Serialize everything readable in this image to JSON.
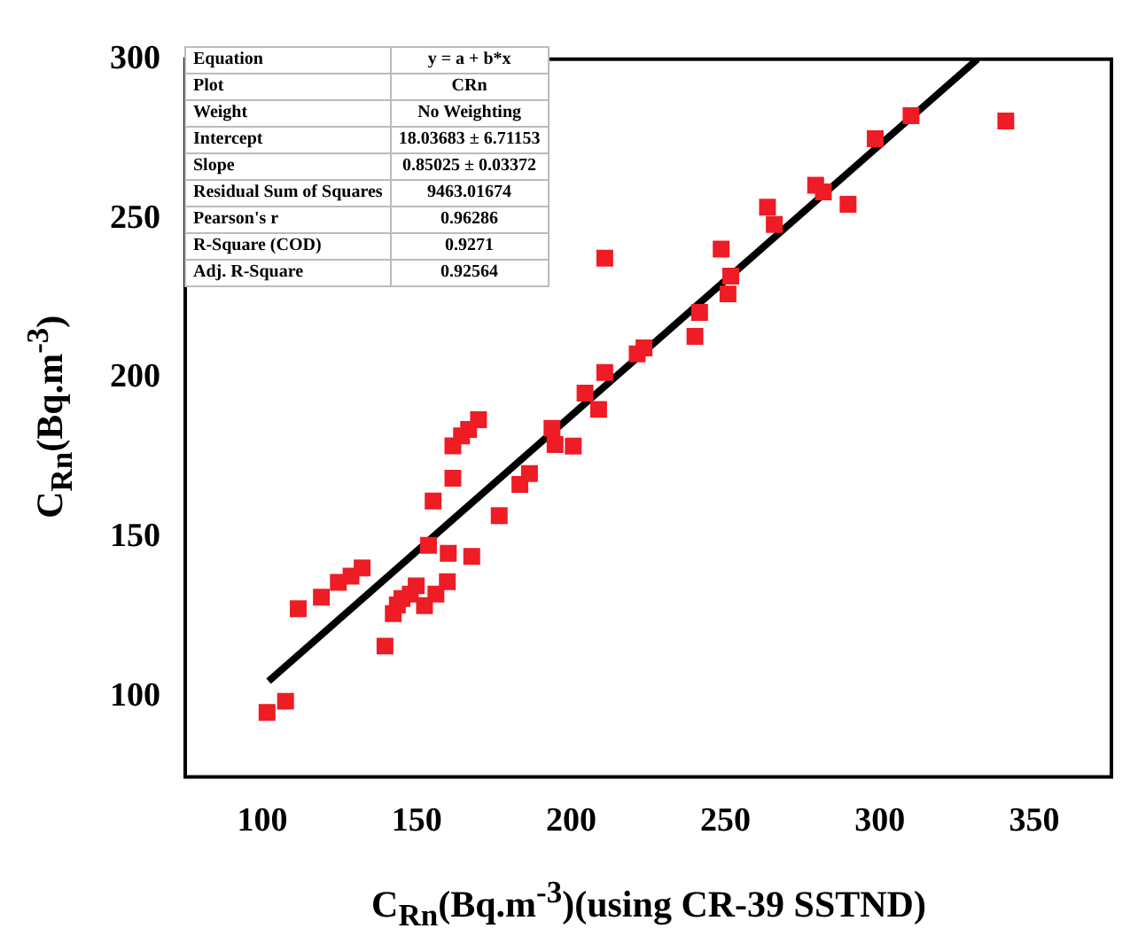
{
  "chart_data": {
    "type": "scatter",
    "xlabel": "C$_{Rn}$(Bq.m$^{-3}$)(using CR-39 SSTND)",
    "ylabel": "C$_{Rn}$(Bq.m$^{-3}$)",
    "xlim": [
      75,
      375
    ],
    "ylim": [
      75,
      300
    ],
    "xticks": [
      100,
      150,
      200,
      250,
      300,
      350
    ],
    "yticks": [
      100,
      150,
      200,
      250,
      300
    ],
    "grid": false,
    "legend": false,
    "annotations": [
      "Equation",
      "y = a + b*x",
      "Plot",
      "CRn",
      "Weight",
      "No Weighting",
      "Intercept",
      "18.03683 ± 6.71153",
      "Slope",
      "0.85025 ± 0.03372",
      "Residual Sum of Squares",
      "9463.01674",
      "Pearson's r",
      "0.96286",
      "R-Square (COD)",
      "0.9271",
      "Adj. R-Square",
      "0.92564"
    ],
    "series": [
      {
        "color": "#ee1c25",
        "marker": "square",
        "x": [
          101.5,
          107.5,
          111.6,
          119.1,
          124.6,
          128.7,
          132.3,
          139.7,
          142.4,
          143.7,
          145.2,
          147.9,
          149.8,
          152.5,
          156.2,
          159.9,
          153.8,
          160.2,
          167.8,
          155.3,
          161.7,
          161.7,
          164.5,
          166.8,
          170.0,
          176.7,
          183.4,
          186.5,
          193.8,
          194.8,
          200.7,
          204.5,
          208.9,
          210.9,
          221.4,
          223.6,
          240.1,
          241.6,
          250.8,
          251.7,
          248.6,
          263.6,
          265.8,
          279.2,
          281.7,
          289.7,
          298.5,
          310.1,
          340.8,
          210.9
        ],
        "values": [
          95.2,
          98.7,
          127.7,
          131.3,
          136.0,
          137.9,
          140.5,
          116.0,
          126.2,
          128.9,
          130.9,
          132.3,
          134.9,
          128.7,
          132.3,
          136.2,
          147.6,
          145.1,
          144.1,
          161.5,
          168.6,
          178.8,
          181.9,
          183.9,
          187.0,
          156.9,
          166.7,
          170.1,
          184.3,
          179.2,
          178.7,
          195.3,
          190.2,
          201.8,
          207.6,
          209.5,
          213.1,
          220.6,
          226.4,
          232.0,
          240.5,
          253.6,
          248.2,
          260.5,
          258.4,
          254.5,
          275.1,
          282.3,
          280.6,
          237.6
        ]
      },
      {
        "type": "line",
        "color": "#000000",
        "line_style": "solid",
        "x": [
          102,
          331.6
        ],
        "values": [
          105,
          300
        ]
      }
    ]
  }
}
